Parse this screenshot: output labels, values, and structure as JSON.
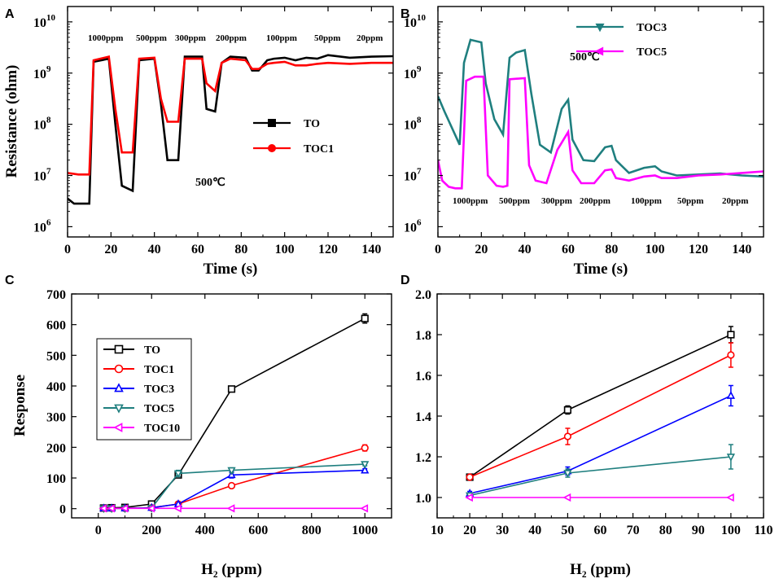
{
  "chart_data": [
    {
      "panel": "A",
      "type": "line",
      "xlabel": "Time (s)",
      "ylabel": "Resistance (ohm)",
      "xlim": [
        0,
        150
      ],
      "ylim_log10": [
        5.8,
        10.3
      ],
      "yscale": "log",
      "xticks": [
        0,
        20,
        40,
        60,
        80,
        100,
        120,
        140
      ],
      "yticks": [
        {
          "base": "10",
          "exp": "6",
          "value": 6
        },
        {
          "base": "10",
          "exp": "7",
          "value": 7
        },
        {
          "base": "10",
          "exp": "8",
          "value": 8
        },
        {
          "base": "10",
          "exp": "9",
          "value": 9
        },
        {
          "base": "10",
          "exp": "10",
          "value": 10
        }
      ],
      "temperature": "500℃",
      "concentration_labels": [
        "1000ppm",
        "500ppm",
        "300ppm",
        "200ppm",
        "100ppm",
        "50ppm",
        "20ppm"
      ],
      "legend_position": "middle-right",
      "series": [
        {
          "name": "TO",
          "color": "#000000",
          "marker": "square-filled",
          "x": [
            0,
            3,
            10,
            12,
            19,
            22,
            25,
            30,
            33,
            40,
            43,
            46,
            51,
            54,
            62,
            64,
            68,
            71,
            75,
            82,
            85,
            88,
            92,
            95,
            100,
            105,
            110,
            115,
            120,
            130,
            140,
            150
          ],
          "log10y": [
            6.55,
            6.45,
            6.45,
            9.22,
            9.28,
            8.0,
            6.8,
            6.7,
            9.25,
            9.28,
            8.4,
            7.3,
            7.3,
            9.32,
            9.32,
            8.3,
            8.25,
            9.2,
            9.32,
            9.3,
            9.05,
            9.05,
            9.25,
            9.28,
            9.3,
            9.25,
            9.3,
            9.28,
            9.35,
            9.3,
            9.32,
            9.33
          ]
        },
        {
          "name": "TOC1",
          "color": "#ff0000",
          "marker": "circle-filled",
          "x": [
            0,
            5,
            10,
            12,
            19,
            22,
            25,
            30,
            33,
            40,
            43,
            46,
            51,
            54,
            62,
            64,
            68,
            71,
            75,
            82,
            85,
            88,
            92,
            95,
            100,
            105,
            110,
            115,
            120,
            130,
            140,
            150
          ],
          "log10y": [
            7.05,
            7.02,
            7.02,
            9.25,
            9.32,
            8.3,
            7.45,
            7.45,
            9.28,
            9.3,
            8.5,
            8.05,
            8.05,
            9.28,
            9.28,
            8.8,
            8.65,
            9.2,
            9.28,
            9.25,
            9.08,
            9.08,
            9.18,
            9.2,
            9.22,
            9.15,
            9.15,
            9.18,
            9.2,
            9.18,
            9.2,
            9.2
          ]
        }
      ]
    },
    {
      "panel": "B",
      "type": "line",
      "xlabel": "Time (s)",
      "ylabel": "",
      "xlim": [
        0,
        150
      ],
      "ylim_log10": [
        5.8,
        10.3
      ],
      "yscale": "log",
      "xticks": [
        0,
        20,
        40,
        60,
        80,
        100,
        120,
        140
      ],
      "yticks": [
        {
          "base": "10",
          "exp": "6",
          "value": 6
        },
        {
          "base": "10",
          "exp": "7",
          "value": 7
        },
        {
          "base": "10",
          "exp": "8",
          "value": 8
        },
        {
          "base": "10",
          "exp": "9",
          "value": 9
        },
        {
          "base": "10",
          "exp": "10",
          "value": 10
        }
      ],
      "temperature": "500℃",
      "concentration_labels": [
        "1000ppm",
        "500ppm",
        "300ppm",
        "200ppm",
        "100ppm",
        "50ppm",
        "20ppm"
      ],
      "legend_position": "top",
      "series": [
        {
          "name": "TOC3",
          "color": "#1f7f7f",
          "marker": "triangle-down-filled",
          "x": [
            0,
            3,
            10,
            12,
            15,
            20,
            22,
            26,
            30,
            33,
            36,
            40,
            43,
            47,
            52,
            57,
            60,
            62,
            67,
            72,
            77,
            80,
            82,
            88,
            95,
            100,
            103,
            110,
            120,
            130,
            140,
            150
          ],
          "log10y": [
            8.55,
            8.25,
            7.6,
            9.2,
            9.65,
            9.6,
            8.8,
            8.1,
            7.8,
            9.3,
            9.4,
            9.45,
            8.6,
            7.6,
            7.45,
            8.3,
            8.48,
            7.7,
            7.3,
            7.28,
            7.55,
            7.58,
            7.3,
            7.05,
            7.15,
            7.18,
            7.08,
            7.0,
            7.02,
            7.04,
            7.0,
            6.98
          ]
        },
        {
          "name": "TOC5",
          "color": "#ff00ff",
          "marker": "triangle-left-filled",
          "x": [
            0,
            2,
            5,
            8,
            11,
            13,
            17,
            21,
            23,
            27,
            30,
            32,
            33,
            40,
            42,
            45,
            50,
            55,
            60,
            62,
            66,
            72,
            77,
            80,
            82,
            88,
            95,
            100,
            103,
            110,
            120,
            130,
            140,
            150
          ],
          "log10y": [
            7.3,
            6.9,
            6.78,
            6.75,
            6.75,
            8.85,
            8.93,
            8.93,
            7.0,
            6.8,
            6.78,
            6.8,
            8.88,
            8.9,
            7.2,
            6.9,
            6.85,
            7.5,
            7.85,
            7.1,
            6.85,
            6.85,
            7.1,
            7.12,
            6.95,
            6.9,
            6.98,
            7.0,
            6.95,
            6.95,
            7.0,
            7.02,
            7.05,
            7.08
          ]
        }
      ]
    },
    {
      "panel": "C",
      "type": "line",
      "xlabel": "H₂ (ppm)",
      "ylabel": "Response",
      "xlim": [
        -100,
        1100
      ],
      "ylim": [
        -30,
        700
      ],
      "xticks": [
        0,
        200,
        400,
        600,
        800,
        1000
      ],
      "yticks": [
        0,
        100,
        200,
        300,
        400,
        500,
        600,
        700
      ],
      "legend_position": "left",
      "series": [
        {
          "name": "TO",
          "color": "#000000",
          "marker": "square-open",
          "x": [
            20,
            50,
            100,
            200,
            300,
            500,
            1000
          ],
          "y": [
            2,
            3,
            4,
            15,
            110,
            390,
            620
          ],
          "err": [
            0,
            0,
            0,
            0,
            5,
            5,
            15
          ]
        },
        {
          "name": "TOC1",
          "color": "#ff0000",
          "marker": "circle-open",
          "x": [
            20,
            50,
            100,
            200,
            300,
            500,
            1000
          ],
          "y": [
            1,
            1,
            1,
            3,
            15,
            75,
            198
          ],
          "err": [
            0,
            0,
            0,
            0,
            0,
            4,
            10
          ]
        },
        {
          "name": "TOC3",
          "color": "#0000ff",
          "marker": "triangle-up-open",
          "x": [
            20,
            50,
            100,
            200,
            300,
            500,
            1000
          ],
          "y": [
            1,
            1,
            1,
            3,
            15,
            110,
            125
          ],
          "err": [
            0,
            0,
            0,
            0,
            0,
            10,
            5
          ]
        },
        {
          "name": "TOC5",
          "color": "#1f7f7f",
          "marker": "triangle-down-open",
          "x": [
            20,
            50,
            100,
            200,
            300,
            500,
            1000
          ],
          "y": [
            1,
            1,
            1,
            2,
            115,
            125,
            145
          ],
          "err": [
            0,
            0,
            0,
            0,
            10,
            8,
            5
          ]
        },
        {
          "name": "TOC10",
          "color": "#ff00ff",
          "marker": "triangle-left-open",
          "x": [
            20,
            50,
            100,
            200,
            300,
            500,
            1000
          ],
          "y": [
            1,
            1,
            1,
            1,
            1,
            1,
            1
          ],
          "err": [
            0,
            0,
            0,
            0,
            0,
            0,
            0
          ]
        }
      ]
    },
    {
      "panel": "D",
      "type": "line",
      "xlabel": "H₂ (ppm)",
      "ylabel": "",
      "xlim": [
        10,
        110
      ],
      "ylim": [
        0.9,
        2.0
      ],
      "xticks": [
        10,
        20,
        30,
        40,
        50,
        60,
        70,
        80,
        90,
        100,
        110
      ],
      "yticks": [
        "1.0",
        "1.2",
        "1.4",
        "1.6",
        "1.8",
        "2.0"
      ],
      "series": [
        {
          "name": "TO",
          "color": "#000000",
          "marker": "square-open",
          "x": [
            20,
            50,
            100
          ],
          "y": [
            1.1,
            1.43,
            1.8
          ],
          "err": [
            0.01,
            0.02,
            0.04
          ]
        },
        {
          "name": "TOC1",
          "color": "#ff0000",
          "marker": "circle-open",
          "x": [
            20,
            50,
            100
          ],
          "y": [
            1.1,
            1.3,
            1.7
          ],
          "err": [
            0.01,
            0.04,
            0.06
          ]
        },
        {
          "name": "TOC3",
          "color": "#0000ff",
          "marker": "triangle-up-open",
          "x": [
            20,
            50,
            100
          ],
          "y": [
            1.02,
            1.13,
            1.5
          ],
          "err": [
            0.01,
            0.02,
            0.05
          ]
        },
        {
          "name": "TOC5",
          "color": "#1f7f7f",
          "marker": "triangle-down-open",
          "x": [
            20,
            50,
            100
          ],
          "y": [
            1.01,
            1.12,
            1.2
          ],
          "err": [
            0.01,
            0.02,
            0.06
          ]
        },
        {
          "name": "TOC10",
          "color": "#ff00ff",
          "marker": "triangle-left-open",
          "x": [
            20,
            50,
            100
          ],
          "y": [
            1.0,
            1.0,
            1.0
          ],
          "err": [
            0,
            0,
            0
          ]
        }
      ]
    }
  ]
}
